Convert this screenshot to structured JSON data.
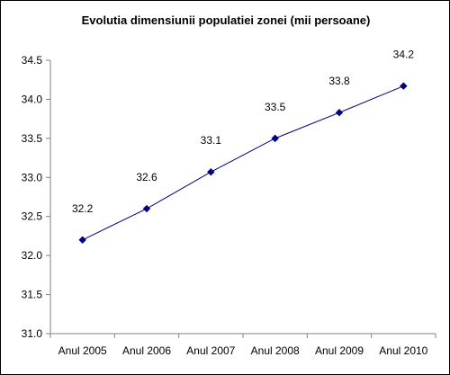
{
  "chart_data": {
    "type": "line",
    "title": "Evolutia dimensiunii populatiei zonei (mii persoane)",
    "xlabel": "",
    "ylabel": "",
    "categories": [
      "Anul 2005",
      "Anul 2006",
      "Anul 2007",
      "Anul 2008",
      "Anul 2009",
      "Anul 2010"
    ],
    "values": [
      32.2,
      32.6,
      33.07,
      33.5,
      33.83,
      34.17
    ],
    "data_labels": [
      "32.2",
      "32.6",
      "33.1",
      "33.5",
      "33.8",
      "34.2"
    ],
    "ylim": [
      31.0,
      34.5
    ],
    "yticks": [
      "31.0",
      "31.5",
      "32.0",
      "32.5",
      "33.0",
      "33.5",
      "34.0",
      "34.5"
    ],
    "grid": false,
    "legend": "none",
    "colors": {
      "line": "#000080",
      "marker": "#000080",
      "axis": "#808080",
      "text": "#000000"
    }
  }
}
